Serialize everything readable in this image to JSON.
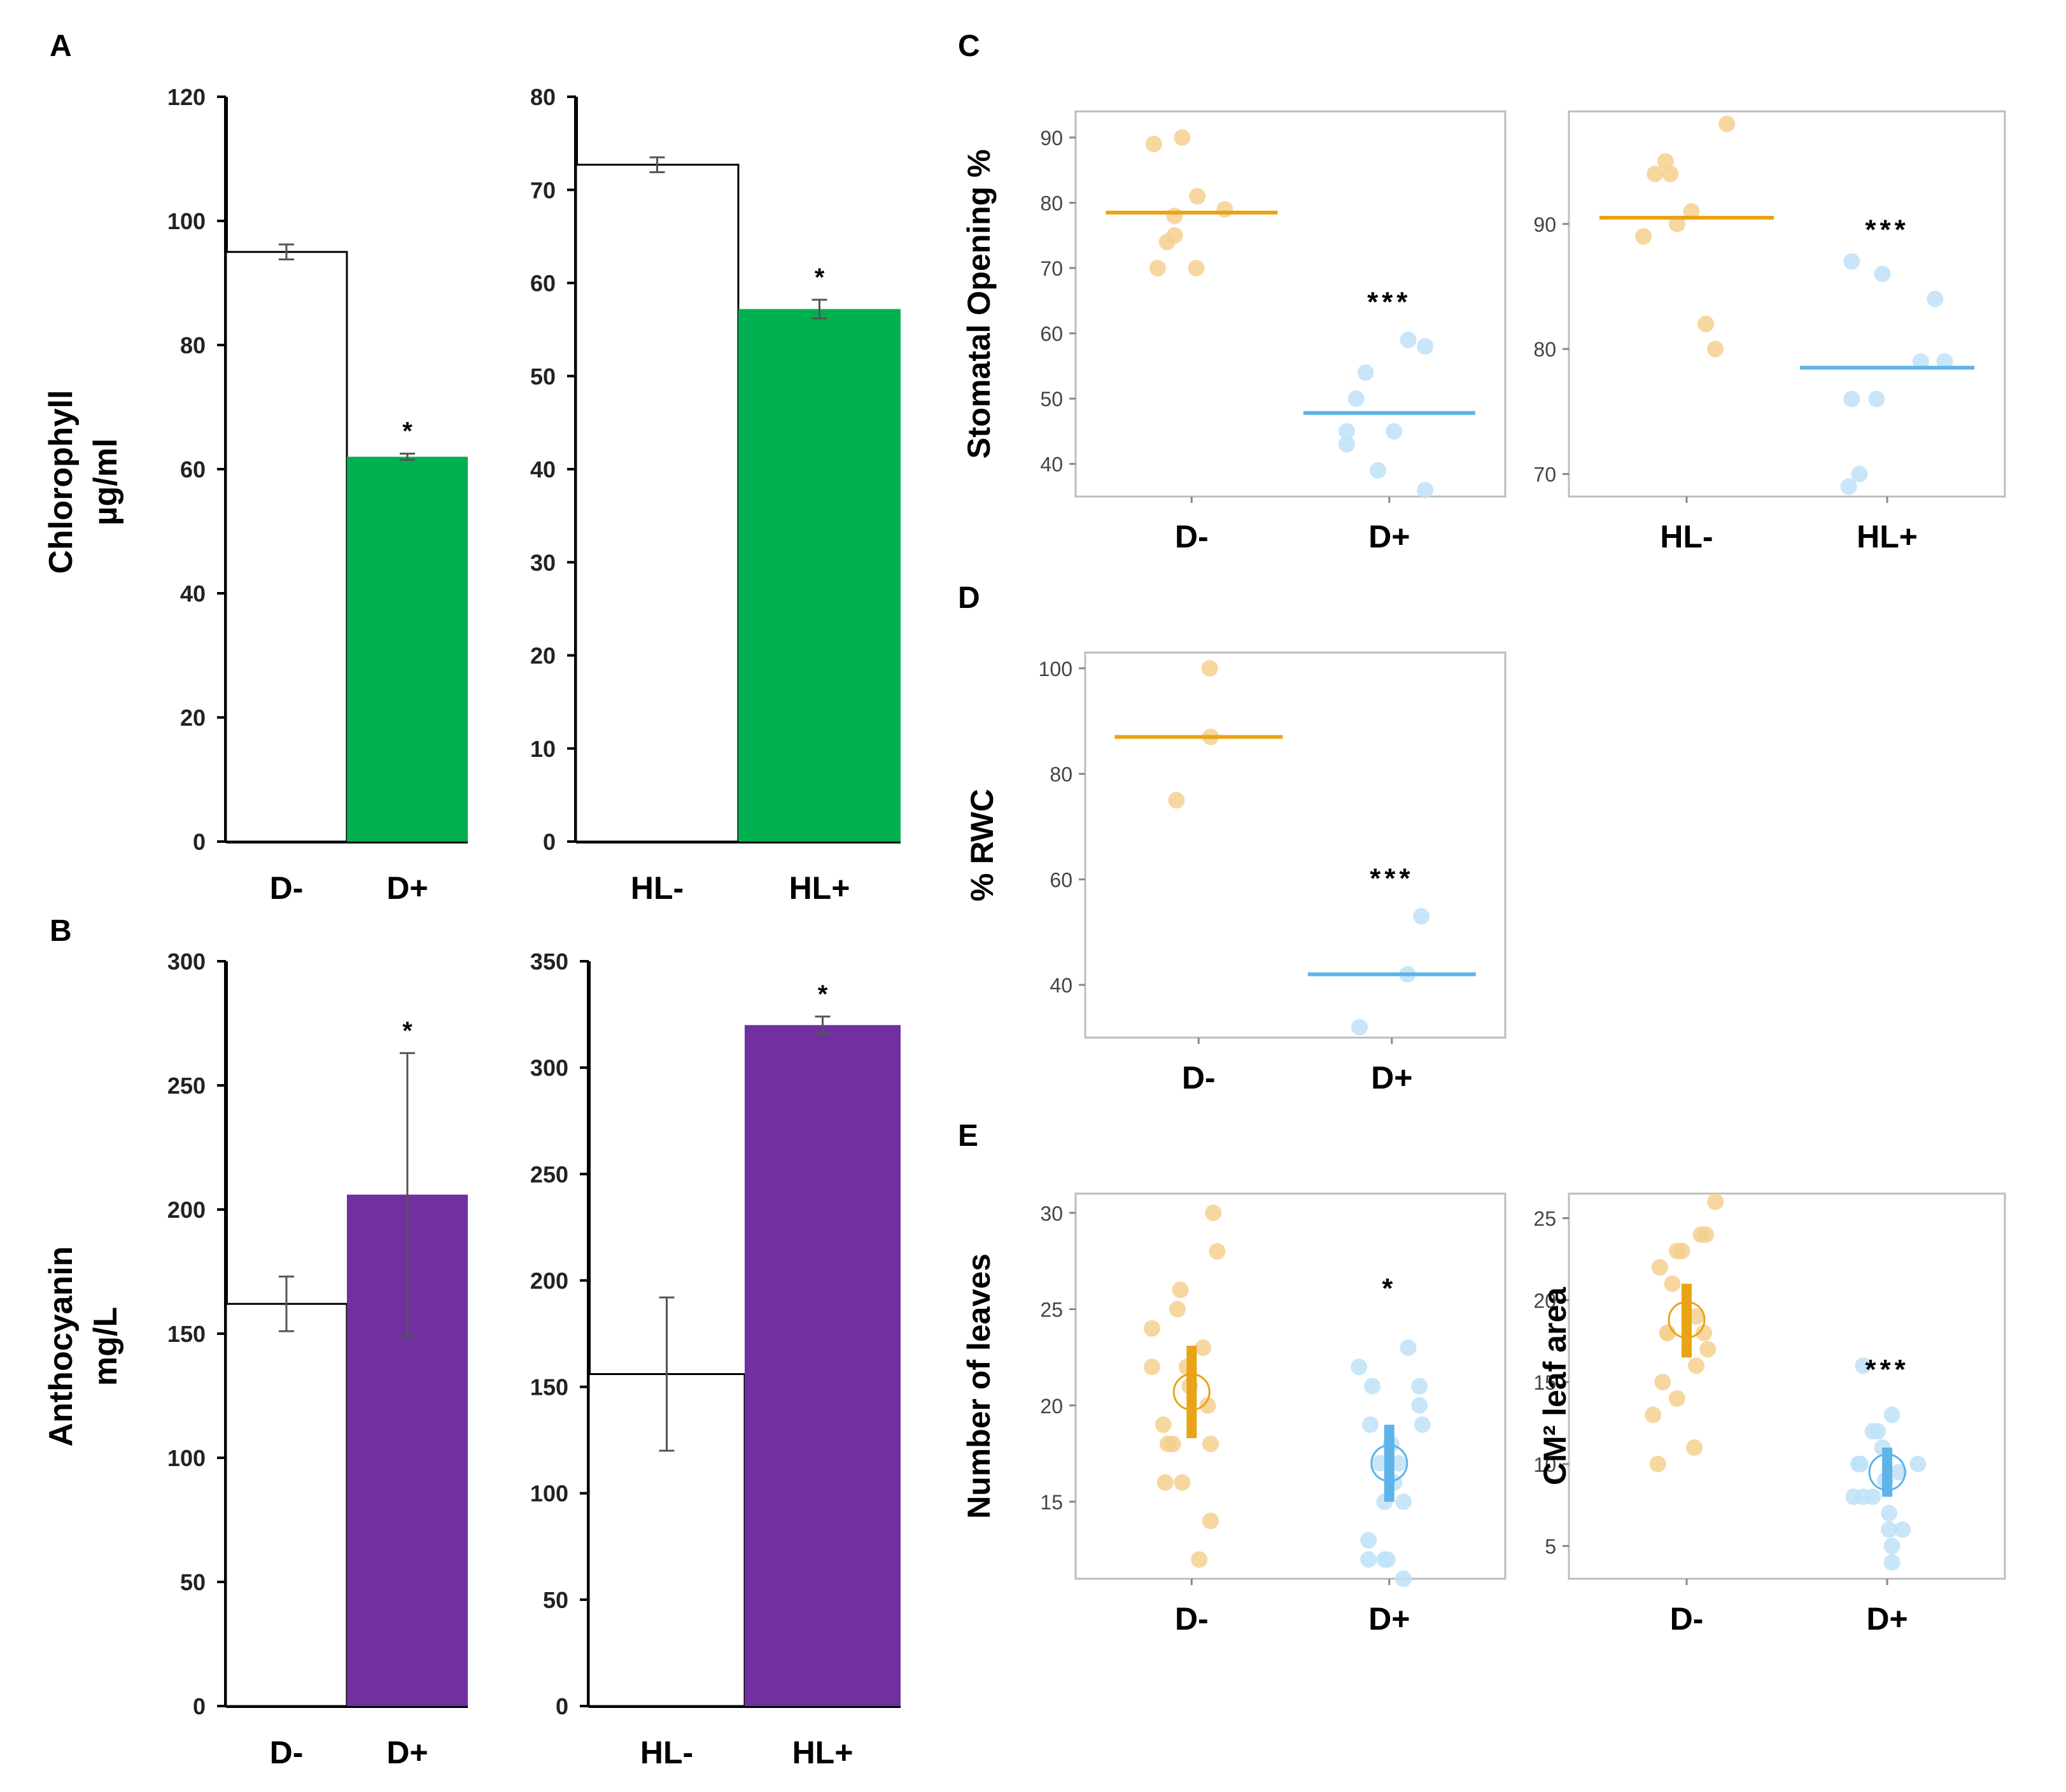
{
  "colors": {
    "green": "#00b050",
    "purple": "#7030a0",
    "orange": "#e8a317",
    "orange_light": "#f5d08e",
    "blue": "#5cb4e8",
    "blue_light": "#bfe2f7",
    "box_stroke": "#bdbdbd"
  },
  "panels": {
    "A": "A",
    "B": "B",
    "C": "C",
    "D": "D",
    "E": "E"
  },
  "chart_data": [
    {
      "id": "A1",
      "panel": "A",
      "type": "bar",
      "ylabel_lines": [
        "Chlorophyll",
        "µg/ml"
      ],
      "categories": [
        "D-",
        "D+"
      ],
      "values": [
        95,
        62
      ],
      "errors": [
        1.2,
        0.5
      ],
      "fills": [
        "white",
        "green"
      ],
      "significance": [
        "",
        "*"
      ],
      "ylim": [
        0,
        120
      ],
      "yticks": [
        0,
        20,
        40,
        60,
        80,
        100,
        120
      ]
    },
    {
      "id": "A2",
      "panel": "A",
      "type": "bar",
      "ylabel_lines": [],
      "categories": [
        "HL-",
        "HL+"
      ],
      "values": [
        72.7,
        57.2
      ],
      "errors": [
        0.8,
        1.0
      ],
      "fills": [
        "white",
        "green"
      ],
      "significance": [
        "",
        "*"
      ],
      "ylim": [
        0,
        80
      ],
      "yticks": [
        0,
        10,
        20,
        30,
        40,
        50,
        60,
        70,
        80
      ]
    },
    {
      "id": "B1",
      "panel": "B",
      "type": "bar",
      "ylabel_lines": [
        "Anthocyanin",
        "mg/L"
      ],
      "categories": [
        "D-",
        "D+"
      ],
      "values": [
        162,
        206
      ],
      "errors": [
        11,
        57
      ],
      "fills": [
        "white",
        "purple"
      ],
      "significance": [
        "",
        "*"
      ],
      "ylim": [
        0,
        300
      ],
      "yticks": [
        0,
        50,
        100,
        150,
        200,
        250,
        300
      ]
    },
    {
      "id": "B2",
      "panel": "B",
      "type": "bar",
      "ylabel_lines": [],
      "categories": [
        "HL-",
        "HL+"
      ],
      "values": [
        156,
        320
      ],
      "errors": [
        36,
        4
      ],
      "fills": [
        "white",
        "purple"
      ],
      "significance": [
        "",
        "*"
      ],
      "ylim": [
        0,
        350
      ],
      "yticks": [
        0,
        50,
        100,
        150,
        200,
        250,
        300,
        350
      ]
    },
    {
      "id": "C1",
      "panel": "C",
      "type": "scatter",
      "ylabel": "Stomatal Opening %",
      "categories": [
        "D-",
        "D+"
      ],
      "ylim": [
        35,
        94
      ],
      "yticks": [
        40,
        50,
        60,
        70,
        80,
        90
      ],
      "groups": [
        {
          "color": "orange",
          "points": [
            [
              -0.4,
              89
            ],
            [
              -0.1,
              90
            ],
            [
              0.06,
              81
            ],
            [
              0.35,
              79
            ],
            [
              -0.18,
              75
            ],
            [
              -0.26,
              74
            ],
            [
              -0.18,
              78
            ],
            [
              -0.36,
              70
            ],
            [
              0.05,
              70
            ]
          ],
          "line": 78.5
        },
        {
          "color": "blue",
          "points": [
            [
              -0.25,
              54
            ],
            [
              -0.35,
              50
            ],
            [
              0.2,
              59
            ],
            [
              0.38,
              58
            ],
            [
              -0.45,
              45
            ],
            [
              -0.45,
              43
            ],
            [
              0.05,
              45
            ],
            [
              -0.12,
              39
            ],
            [
              0.38,
              36
            ]
          ],
          "line": 47.8
        }
      ],
      "significance": [
        "",
        "***"
      ]
    },
    {
      "id": "C2",
      "panel": "C",
      "type": "scatter",
      "ylabel": "",
      "categories": [
        "HL-",
        "HL+"
      ],
      "ylim": [
        68.2,
        99
      ],
      "yticks": [
        70,
        80,
        90
      ],
      "groups": [
        {
          "color": "orange",
          "points": [
            [
              -0.33,
              94
            ],
            [
              -0.22,
              95
            ],
            [
              -0.17,
              94
            ],
            [
              0.42,
              98
            ],
            [
              0.05,
              91
            ],
            [
              -0.45,
              89
            ],
            [
              -0.1,
              90
            ],
            [
              0.2,
              82
            ],
            [
              0.3,
              80
            ]
          ],
          "line": 90.5
        },
        {
          "color": "blue",
          "points": [
            [
              -0.37,
              87
            ],
            [
              -0.05,
              86
            ],
            [
              0.5,
              84
            ],
            [
              0.35,
              79
            ],
            [
              0.6,
              79
            ],
            [
              -0.37,
              76
            ],
            [
              -0.11,
              76
            ],
            [
              -0.29,
              70
            ],
            [
              -0.4,
              69
            ]
          ],
          "line": 78.5
        }
      ],
      "significance": [
        "",
        "***"
      ]
    },
    {
      "id": "D1",
      "panel": "D",
      "type": "scatter",
      "ylabel": "% RWC",
      "categories": [
        "D-",
        "D+"
      ],
      "ylim": [
        30,
        103
      ],
      "yticks": [
        40,
        60,
        80,
        100
      ],
      "groups": [
        {
          "color": "orange",
          "points": [
            [
              0.12,
              100
            ],
            [
              0.13,
              87
            ],
            [
              -0.24,
              75
            ]
          ],
          "line": 87
        },
        {
          "color": "blue",
          "points": [
            [
              0.32,
              53
            ],
            [
              0.17,
              42
            ],
            [
              -0.35,
              32
            ]
          ],
          "line": 42
        }
      ],
      "significance": [
        "",
        "***"
      ]
    },
    {
      "id": "E1",
      "panel": "E",
      "type": "scatter",
      "ylabel": "Number of leaves",
      "categories": [
        "D-",
        "D+"
      ],
      "ylim": [
        11,
        31
      ],
      "yticks": [
        15,
        20,
        25,
        30
      ],
      "groups": [
        {
          "color": "orange",
          "points": [
            [
              0.23,
              30
            ],
            [
              0.27,
              28
            ],
            [
              -0.12,
              26
            ],
            [
              -0.42,
              24
            ],
            [
              -0.15,
              25
            ],
            [
              -0.42,
              22
            ],
            [
              -0.05,
              22
            ],
            [
              0.12,
              23
            ],
            [
              -0.02,
              21
            ],
            [
              0.17,
              20
            ],
            [
              -0.3,
              19
            ],
            [
              -0.25,
              18
            ],
            [
              -0.2,
              18
            ],
            [
              0.2,
              18
            ],
            [
              -0.28,
              16
            ],
            [
              -0.1,
              16
            ],
            [
              0.2,
              14
            ],
            [
              0.08,
              12
            ]
          ],
          "mean": 20.7,
          "ci": [
            18.3,
            23.1
          ]
        },
        {
          "color": "blue",
          "points": [
            [
              -0.32,
              22
            ],
            [
              -0.18,
              21
            ],
            [
              0.2,
              23
            ],
            [
              0.32,
              21
            ],
            [
              0.32,
              20
            ],
            [
              0.35,
              19
            ],
            [
              -0.2,
              19
            ],
            [
              0.02,
              18
            ],
            [
              -0.1,
              17
            ],
            [
              0.1,
              17
            ],
            [
              0.05,
              16
            ],
            [
              -0.05,
              15
            ],
            [
              0.15,
              15
            ],
            [
              -0.22,
              13
            ],
            [
              -0.22,
              12
            ],
            [
              -0.05,
              12
            ],
            [
              -0.02,
              12
            ],
            [
              0.15,
              11
            ]
          ],
          "mean": 17,
          "ci": [
            15,
            19
          ]
        }
      ],
      "significance": [
        "",
        "*"
      ]
    },
    {
      "id": "E2",
      "panel": "E",
      "type": "scatter",
      "ylabel": "CM² leaf area",
      "categories": [
        "D-",
        "D+"
      ],
      "ylim": [
        3,
        26.5
      ],
      "yticks": [
        5,
        10,
        15,
        20,
        25
      ],
      "groups": [
        {
          "color": "orange",
          "points": [
            [
              0.3,
              26
            ],
            [
              0.15,
              24
            ],
            [
              0.2,
              24
            ],
            [
              -0.1,
              23
            ],
            [
              -0.05,
              23
            ],
            [
              -0.28,
              22
            ],
            [
              -0.15,
              21
            ],
            [
              -0.2,
              18
            ],
            [
              -0.2,
              18
            ],
            [
              0.1,
              19
            ],
            [
              0.18,
              18
            ],
            [
              0.22,
              17
            ],
            [
              -0.35,
              13
            ],
            [
              -0.25,
              15
            ],
            [
              -0.1,
              14
            ],
            [
              -0.3,
              10
            ],
            [
              0.08,
              11
            ],
            [
              0.1,
              16
            ]
          ],
          "mean": 18.8,
          "ci": [
            16.5,
            21
          ]
        },
        {
          "color": "blue",
          "points": [
            [
              -0.25,
              16
            ],
            [
              -0.15,
              12
            ],
            [
              -0.1,
              12
            ],
            [
              0.05,
              13
            ],
            [
              -0.05,
              11
            ],
            [
              0.32,
              10
            ],
            [
              -0.3,
              10
            ],
            [
              -0.28,
              10
            ],
            [
              -0.35,
              8
            ],
            [
              -0.25,
              8
            ],
            [
              -0.15,
              8
            ],
            [
              0.02,
              7
            ],
            [
              0.02,
              6
            ],
            [
              0.05,
              5
            ],
            [
              0.05,
              4
            ],
            [
              0.16,
              6
            ],
            [
              -0.02,
              9
            ],
            [
              0.12,
              9.5
            ]
          ],
          "mean": 9.5,
          "ci": [
            8,
            11
          ]
        }
      ],
      "significance": [
        "",
        "***"
      ]
    }
  ]
}
